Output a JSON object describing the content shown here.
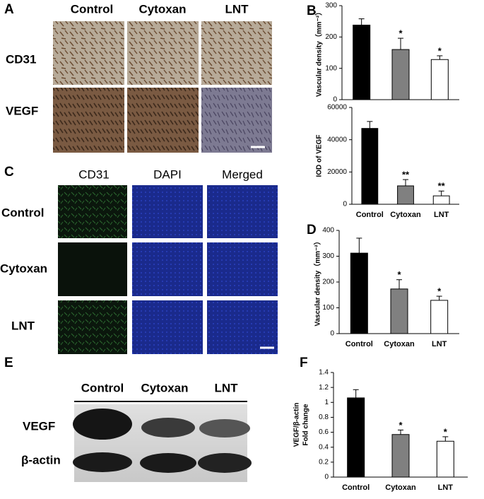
{
  "panel_labels": [
    "A",
    "B",
    "C",
    "D",
    "E",
    "F"
  ],
  "panel_a": {
    "columns": [
      "Control",
      "Cytoxan",
      "LNT"
    ],
    "rows": [
      "CD31",
      "VEGF"
    ]
  },
  "panel_c": {
    "columns": [
      "CD31",
      "DAPI",
      "Merged"
    ],
    "rows": [
      "Control",
      "Cytoxan",
      "LNT"
    ]
  },
  "panel_e": {
    "columns": [
      "Control",
      "Cytoxan",
      "LNT"
    ],
    "rows": [
      "VEGF",
      "β-actin"
    ]
  },
  "chart_data": [
    {
      "type": "bar",
      "ylabel": [
        "Vascular density（mm⁻²）"
      ],
      "categories": [
        null,
        null,
        null
      ],
      "values": [
        238,
        160,
        128
      ],
      "errors": [
        20,
        36,
        12
      ],
      "annotations": [
        null,
        "*",
        "*"
      ],
      "colors": [
        "#000000",
        "#808080",
        "#ffffff"
      ],
      "ylim": [
        0,
        300
      ],
      "yticks": [
        0,
        100,
        200,
        300
      ]
    },
    {
      "type": "bar",
      "ylabel": [
        "IOD of VEGF"
      ],
      "categories": [
        "Control",
        "Cytoxan",
        "LNT"
      ],
      "values": [
        47000,
        11400,
        5200
      ],
      "errors": [
        4300,
        3900,
        3000
      ],
      "annotations": [
        null,
        "**",
        "**"
      ],
      "colors": [
        "#000000",
        "#808080",
        "#ffffff"
      ],
      "ylim": [
        0,
        60000
      ],
      "yticks": [
        0,
        20000,
        40000,
        60000
      ]
    },
    {
      "type": "bar",
      "ylabel": [
        "Vascular density（mm⁻²）"
      ],
      "categories": [
        "Control",
        "Cytoxan",
        "LNT"
      ],
      "values": [
        312,
        173,
        129
      ],
      "errors": [
        58,
        36,
        16
      ],
      "annotations": [
        null,
        "*",
        "*"
      ],
      "colors": [
        "#000000",
        "#808080",
        "#ffffff"
      ],
      "ylim": [
        0,
        400
      ],
      "yticks": [
        0,
        100,
        200,
        300,
        400
      ]
    },
    {
      "type": "bar",
      "ylabel": [
        "VEGF/β-actin",
        "Fold change"
      ],
      "categories": [
        "Control",
        "Cytoxan",
        "LNT"
      ],
      "values": [
        1.06,
        0.57,
        0.48
      ],
      "errors": [
        0.11,
        0.06,
        0.06
      ],
      "annotations": [
        null,
        "*",
        "*"
      ],
      "colors": [
        "#000000",
        "#808080",
        "#ffffff"
      ],
      "ylim": [
        0,
        1.4
      ],
      "yticks": [
        0,
        0.2,
        0.4,
        0.6,
        0.8,
        1,
        1.2,
        1.4
      ]
    }
  ]
}
